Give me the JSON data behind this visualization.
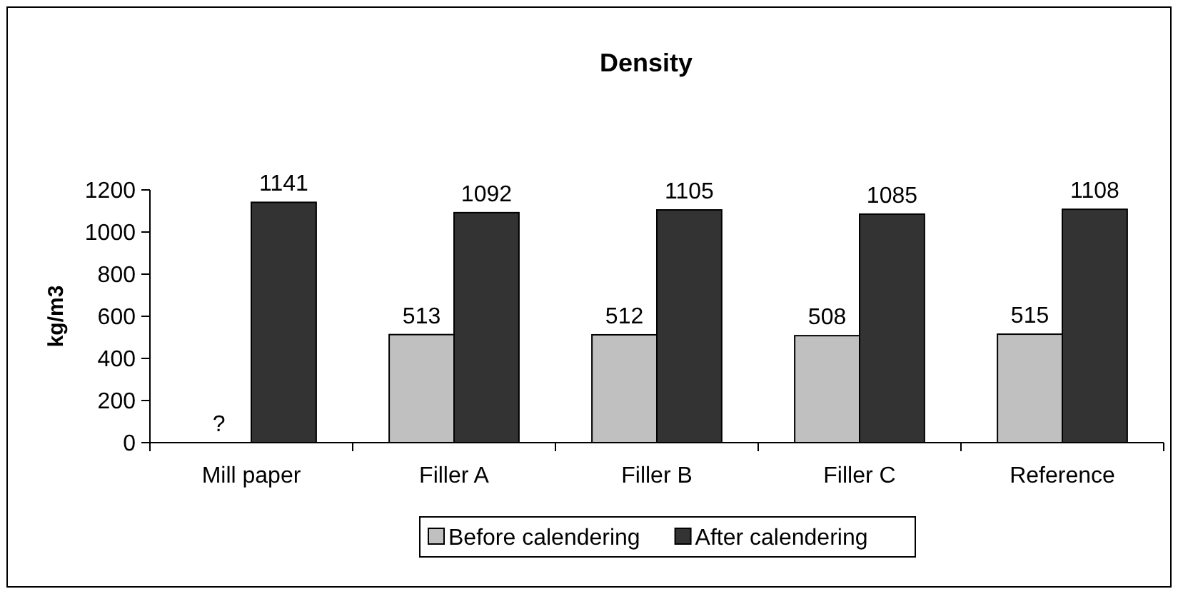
{
  "chart_data": {
    "type": "bar",
    "title": "Density",
    "ylabel": "kg/m3",
    "categories": [
      "Mill paper",
      "Filler A",
      "Filler B",
      "Filler C",
      "Reference"
    ],
    "series": [
      {
        "name": "Before calendering",
        "color": "#c0c0c0",
        "values": [
          null,
          513,
          512,
          508,
          515
        ],
        "value_labels": [
          "?",
          "513",
          "512",
          "508",
          "515"
        ]
      },
      {
        "name": "After calendering",
        "color": "#333333",
        "values": [
          1141,
          1092,
          1105,
          1085,
          1108
        ],
        "value_labels": [
          "1141",
          "1092",
          "1105",
          "1085",
          "1108"
        ]
      }
    ],
    "ylim": [
      0,
      1200
    ],
    "yticks": [
      0,
      200,
      400,
      600,
      800,
      1000,
      1200
    ],
    "grid": false,
    "legend": "bottom"
  }
}
